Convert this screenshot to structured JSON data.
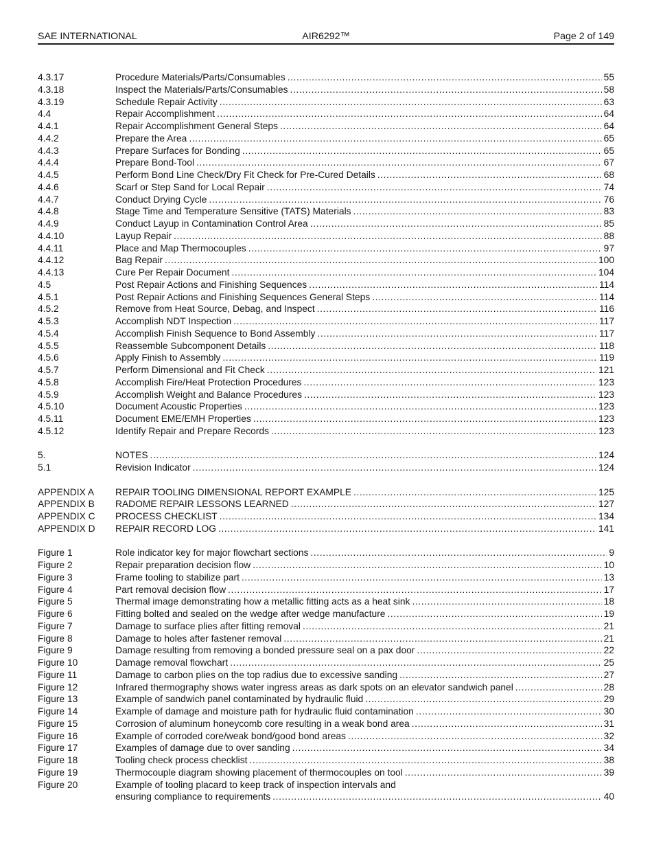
{
  "header": {
    "left": "SAE INTERNATIONAL",
    "center": "AIR6292™",
    "right": "Page 2 of 149"
  },
  "toc": {
    "groups": [
      {
        "id": "sections-4",
        "rows": [
          {
            "label": "4.3.17",
            "title": "Procedure Materials/Parts/Consumables",
            "page": "55"
          },
          {
            "label": "4.3.18",
            "title": "Inspect the Materials/Parts/Consumables",
            "page": "58"
          },
          {
            "label": "4.3.19",
            "title": "Schedule Repair Activity",
            "page": "63"
          },
          {
            "label": "4.4",
            "title": "Repair Accomplishment",
            "page": "64"
          },
          {
            "label": "4.4.1",
            "title": "Repair Accomplishment General Steps",
            "page": "64"
          },
          {
            "label": "4.4.2",
            "title": "Prepare the Area",
            "page": "65"
          },
          {
            "label": "4.4.3",
            "title": "Prepare Surfaces for Bonding",
            "page": "65"
          },
          {
            "label": "4.4.4",
            "title": "Prepare Bond-Tool",
            "page": "67"
          },
          {
            "label": "4.4.5",
            "title": "Perform Bond Line Check/Dry Fit Check for Pre-Cured Details",
            "page": "68"
          },
          {
            "label": "4.4.6",
            "title": "Scarf or Step Sand for Local Repair",
            "page": "74"
          },
          {
            "label": "4.4.7",
            "title": "Conduct Drying Cycle",
            "page": "76"
          },
          {
            "label": "4.4.8",
            "title": "Stage Time and Temperature Sensitive (TATS) Materials",
            "page": "83"
          },
          {
            "label": "4.4.9",
            "title": "Conduct Layup in Contamination Control Area",
            "page": "85"
          },
          {
            "label": "4.4.10",
            "title": "Layup Repair",
            "page": "88"
          },
          {
            "label": "4.4.11",
            "title": "Place and Map Thermocouples",
            "page": "97"
          },
          {
            "label": "4.4.12",
            "title": "Bag Repair",
            "page": "100"
          },
          {
            "label": "4.4.13",
            "title": "Cure Per Repair Document",
            "page": "104"
          },
          {
            "label": "4.5",
            "title": "Post Repair Actions and Finishing Sequences",
            "page": "114"
          },
          {
            "label": "4.5.1",
            "title": "Post Repair Actions and Finishing Sequences General Steps",
            "page": "114"
          },
          {
            "label": "4.5.2",
            "title": "Remove from Heat Source, Debag, and Inspect",
            "page": "116"
          },
          {
            "label": "4.5.3",
            "title": "Accomplish NDT Inspection",
            "page": "117"
          },
          {
            "label": "4.5.4",
            "title": "Accomplish Finish Sequence to Bond Assembly",
            "page": "117"
          },
          {
            "label": "4.5.5",
            "title": "Reassemble Subcomponent Details",
            "page": "118"
          },
          {
            "label": "4.5.6",
            "title": "Apply Finish to Assembly",
            "page": "119"
          },
          {
            "label": "4.5.7",
            "title": "Perform Dimensional and Fit Check",
            "page": "121"
          },
          {
            "label": "4.5.8",
            "title": "Accomplish Fire/Heat Protection Procedures",
            "page": "123"
          },
          {
            "label": "4.5.9",
            "title": "Accomplish Weight and Balance Procedures",
            "page": "123"
          },
          {
            "label": "4.5.10",
            "title": "Document Acoustic Properties",
            "page": "123"
          },
          {
            "label": "4.5.11",
            "title": "Document EME/EMH Properties",
            "page": "123"
          },
          {
            "label": "4.5.12",
            "title": "Identify Repair and Prepare Records",
            "page": "123"
          }
        ]
      },
      {
        "id": "notes",
        "rows": [
          {
            "label": "5.",
            "title": "NOTES",
            "page": "124"
          },
          {
            "label": "5.1",
            "title": "Revision Indicator",
            "page": "124"
          }
        ]
      },
      {
        "id": "appendices",
        "rows": [
          {
            "label": "APPENDIX A",
            "title": "REPAIR TOOLING DIMENSIONAL REPORT EXAMPLE",
            "page": "125"
          },
          {
            "label": "APPENDIX B",
            "title": "RADOME REPAIR LESSONS LEARNED",
            "page": "127"
          },
          {
            "label": "APPENDIX C",
            "title": "PROCESS CHECKLIST",
            "page": "134"
          },
          {
            "label": "APPENDIX D",
            "title": "REPAIR RECORD LOG",
            "page": "141"
          }
        ]
      },
      {
        "id": "figures",
        "rows": [
          {
            "label": "Figure 1",
            "title": "Role indicator key for major flowchart sections",
            "page": "9"
          },
          {
            "label": "Figure 2",
            "title": "Repair preparation decision flow",
            "page": "10"
          },
          {
            "label": "Figure 3",
            "title": "Frame tooling to stabilize part",
            "page": "13"
          },
          {
            "label": "Figure 4",
            "title": "Part removal decision flow",
            "page": "17"
          },
          {
            "label": "Figure 5",
            "title": "Thermal image demonstrating how a metallic fitting acts as a heat sink",
            "page": "18"
          },
          {
            "label": "Figure 6",
            "title": "Fitting bolted and sealed on the wedge after wedge manufacture",
            "page": "19"
          },
          {
            "label": "Figure 7",
            "title": "Damage to surface plies after fitting removal",
            "page": "21"
          },
          {
            "label": "Figure 8",
            "title": "Damage to holes after fastener removal",
            "page": "21"
          },
          {
            "label": "Figure 9",
            "title": "Damage resulting from removing a bonded pressure seal on a pax door",
            "page": "22"
          },
          {
            "label": "Figure 10",
            "title": "Damage removal flowchart",
            "page": "25"
          },
          {
            "label": "Figure 11",
            "title": "Damage to carbon plies on the top radius due to excessive sanding",
            "page": "27"
          },
          {
            "label": "Figure 12",
            "title": "Infrared thermography shows water ingress areas as dark spots on an elevator sandwich panel",
            "page": "28"
          },
          {
            "label": "Figure 13",
            "title": "Example of sandwich panel contaminated by hydraulic fluid",
            "page": "29"
          },
          {
            "label": "Figure 14",
            "title": "Example of damage and moisture path for hydraulic fluid contamination",
            "page": "30"
          },
          {
            "label": "Figure 15",
            "title": "Corrosion of aluminum honeycomb core resulting in a weak bond area",
            "page": "31"
          },
          {
            "label": "Figure 16",
            "title": "Example of corroded core/weak bond/good bond areas",
            "page": "32"
          },
          {
            "label": "Figure 17",
            "title": "Examples of damage due to over sanding",
            "page": "34"
          },
          {
            "label": "Figure 18",
            "title": "Tooling check process checklist",
            "page": "38"
          },
          {
            "label": "Figure 19",
            "title": "Thermocouple diagram showing placement of thermocouples on tool",
            "page": "39"
          },
          {
            "label": "Figure 20",
            "title": "Example of tooling placard to keep track of inspection intervals and",
            "title_line2": "ensuring compliance to requirements",
            "page": "40"
          }
        ]
      }
    ]
  }
}
